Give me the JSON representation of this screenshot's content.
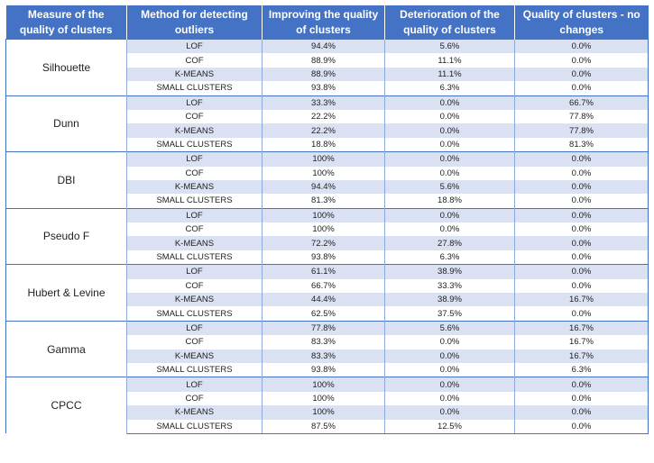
{
  "headers": [
    "Measure of the quality of clusters",
    "Method for detecting outliers",
    "Improving the quality of clusters",
    "Deterioration of the quality of clusters",
    "Quality of clusters - no changes"
  ],
  "groups": [
    {
      "measure": "Silhouette",
      "rows": [
        [
          "LOF",
          "94.4%",
          "5.6%",
          "0.0%"
        ],
        [
          "COF",
          "88.9%",
          "11.1%",
          "0.0%"
        ],
        [
          "K-MEANS",
          "88.9%",
          "11.1%",
          "0.0%"
        ],
        [
          "SMALL CLUSTERS",
          "93.8%",
          "6.3%",
          "0.0%"
        ]
      ]
    },
    {
      "measure": "Dunn",
      "rows": [
        [
          "LOF",
          "33.3%",
          "0.0%",
          "66.7%"
        ],
        [
          "COF",
          "22.2%",
          "0.0%",
          "77.8%"
        ],
        [
          "K-MEANS",
          "22.2%",
          "0.0%",
          "77.8%"
        ],
        [
          "SMALL CLUSTERS",
          "18.8%",
          "0.0%",
          "81.3%"
        ]
      ]
    },
    {
      "measure": "DBI",
      "rows": [
        [
          "LOF",
          "100%",
          "0.0%",
          "0.0%"
        ],
        [
          "COF",
          "100%",
          "0.0%",
          "0.0%"
        ],
        [
          "K-MEANS",
          "94.4%",
          "5.6%",
          "0.0%"
        ],
        [
          "SMALL CLUSTERS",
          "81.3%",
          "18.8%",
          "0.0%"
        ]
      ]
    },
    {
      "measure": "Pseudo F",
      "rows": [
        [
          "LOF",
          "100%",
          "0.0%",
          "0.0%"
        ],
        [
          "COF",
          "100%",
          "0.0%",
          "0.0%"
        ],
        [
          "K-MEANS",
          "72.2%",
          "27.8%",
          "0.0%"
        ],
        [
          "SMALL CLUSTERS",
          "93.8%",
          "6.3%",
          "0.0%"
        ]
      ]
    },
    {
      "measure": "Hubert & Levine",
      "rows": [
        [
          "LOF",
          "61.1%",
          "38.9%",
          "0.0%"
        ],
        [
          "COF",
          "66.7%",
          "33.3%",
          "0.0%"
        ],
        [
          "K-MEANS",
          "44.4%",
          "38.9%",
          "16.7%"
        ],
        [
          "SMALL CLUSTERS",
          "62.5%",
          "37.5%",
          "0.0%"
        ]
      ]
    },
    {
      "measure": "Gamma",
      "rows": [
        [
          "LOF",
          "77.8%",
          "5.6%",
          "16.7%"
        ],
        [
          "COF",
          "83.3%",
          "0.0%",
          "16.7%"
        ],
        [
          "K-MEANS",
          "83.3%",
          "0.0%",
          "16.7%"
        ],
        [
          "SMALL CLUSTERS",
          "93.8%",
          "0.0%",
          "6.3%"
        ]
      ]
    },
    {
      "measure": "CPCC",
      "rows": [
        [
          "LOF",
          "100%",
          "0.0%",
          "0.0%"
        ],
        [
          "COF",
          "100%",
          "0.0%",
          "0.0%"
        ],
        [
          "K-MEANS",
          "100%",
          "0.0%",
          "0.0%"
        ],
        [
          "SMALL CLUSTERS",
          "87.5%",
          "12.5%",
          "0.0%"
        ]
      ]
    }
  ]
}
